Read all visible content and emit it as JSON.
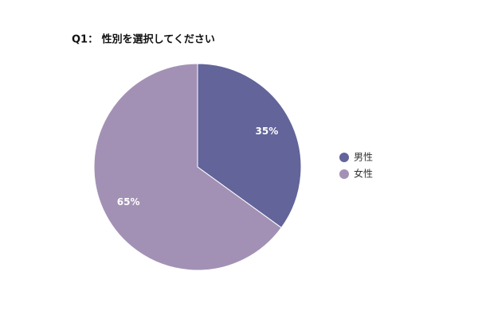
{
  "chart_data": {
    "type": "pie",
    "title": "Q1： 性別を選択してください",
    "categories": [
      "男性",
      "女性"
    ],
    "values": [
      35,
      65
    ],
    "value_labels": [
      "35%",
      "65%"
    ],
    "colors": [
      "#62649a",
      "#a391b5"
    ],
    "legend": "right"
  }
}
